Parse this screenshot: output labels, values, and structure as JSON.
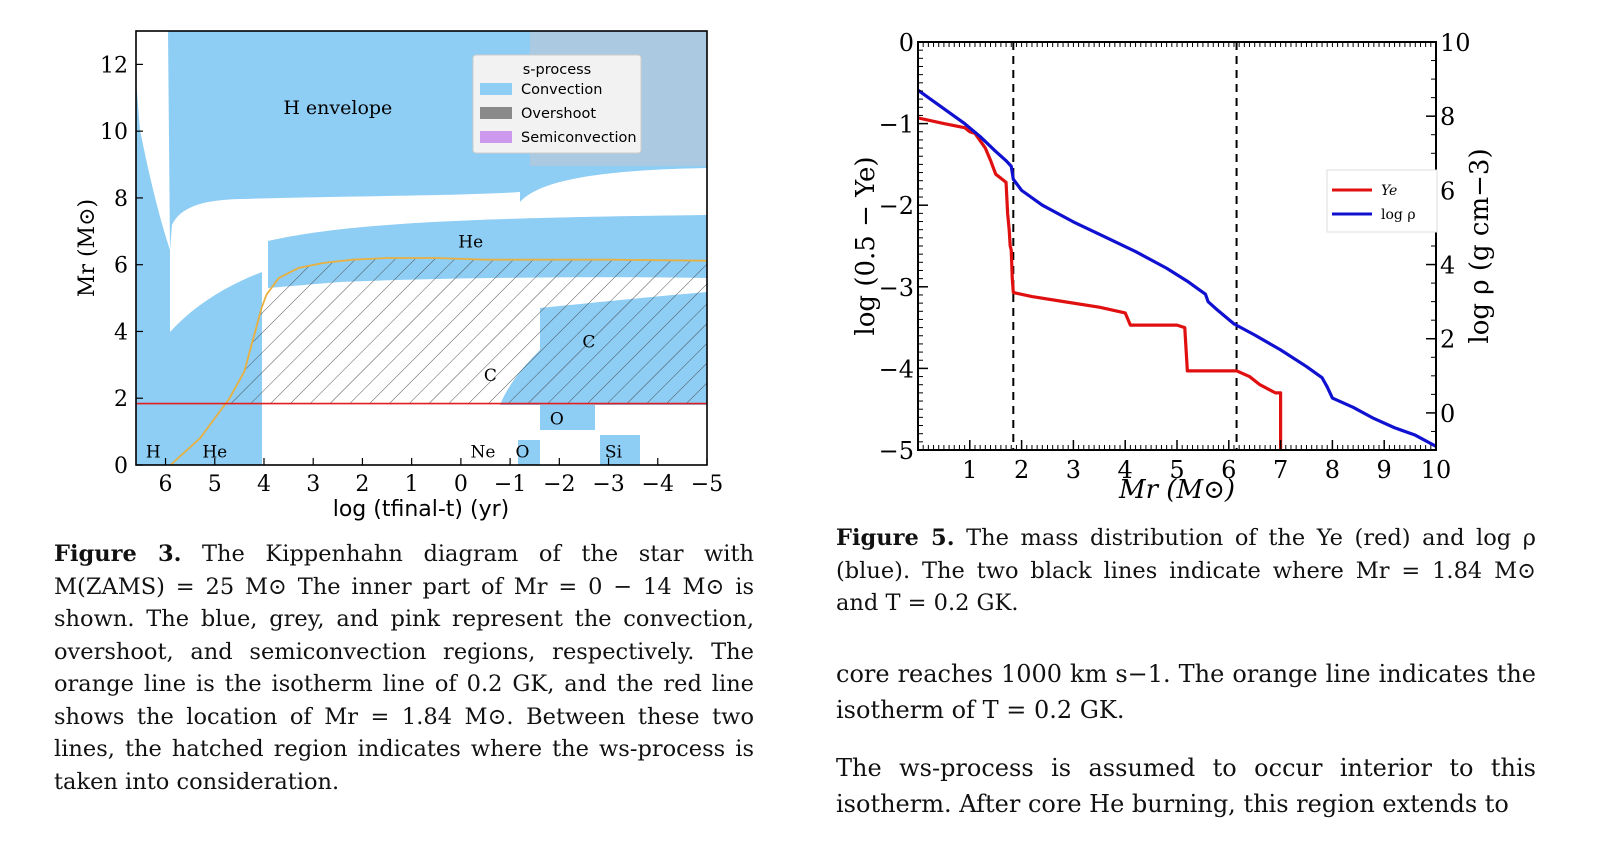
{
  "figure3": {
    "label": "Figure 3.",
    "caption": "The Kippenhahn diagram of the star with M(ZAMS) = 25 M⊙ The inner part of Mr = 0 − 14 M⊙ is shown. The blue, grey, and pink represent the convection, overshoot, and semiconvection regions, respectively. The orange line is the isotherm line of 0.2 GK, and the red line shows the location of Mr = 1.84 M⊙. Between these two lines, the hatched region indicates where the ws-process is taken into consideration."
  },
  "figure5": {
    "label": "Figure 5.",
    "caption": "The mass distribution of the Ye (red) and log ρ (blue). The two black lines indicate where Mr = 1.84 M⊙ and T = 0.2 GK."
  },
  "body": {
    "para1": "core reaches 1000 km s−1. The orange line indicates the isotherm of T = 0.2 GK.",
    "para2": "The ws-process is assumed to occur interior to this isotherm. After core He burning, this region extends to"
  },
  "chart_data": [
    {
      "type": "area",
      "name": "kippenhahn",
      "xlabel": "log (tfinal-t) (yr)",
      "ylabel": "Mr (M⊙)",
      "xlim": [
        6.6,
        -5
      ],
      "ylim": [
        0,
        13
      ],
      "xticks": [
        "6",
        "5",
        "4",
        "3",
        "2",
        "1",
        "0",
        "−1",
        "−2",
        "−3",
        "−4",
        "−5"
      ],
      "xtick_values": [
        6,
        5,
        4,
        3,
        2,
        1,
        0,
        -1,
        -2,
        -3,
        -4,
        -5
      ],
      "yticks": [
        "0",
        "2",
        "4",
        "6",
        "8",
        "10",
        "12"
      ],
      "ytick_values": [
        0,
        2,
        4,
        6,
        8,
        10,
        12
      ],
      "legend": {
        "title": "s-process",
        "placement": "top-right",
        "entries": [
          {
            "label": "Convection",
            "color": "#8ecdf4"
          },
          {
            "label": "Overshoot",
            "color": "#8a8a8a"
          },
          {
            "label": "Semiconvection",
            "color": "#cc99ee"
          }
        ]
      },
      "region_labels": [
        {
          "text": "H envelope",
          "x": 2.5,
          "y": 10.7
        },
        {
          "text": "He",
          "x": -0.2,
          "y": 6.7
        },
        {
          "text": "C",
          "x": -2.6,
          "y": 3.7
        },
        {
          "text": "C",
          "x": -0.6,
          "y": 2.7
        },
        {
          "text": "O",
          "x": -1.95,
          "y": 1.4
        },
        {
          "text": "H",
          "x": 6.25,
          "y": 0.4
        },
        {
          "text": "He",
          "x": 5.0,
          "y": 0.4
        },
        {
          "text": "Ne",
          "x": -0.45,
          "y": 0.4
        },
        {
          "text": "O",
          "x": -1.25,
          "y": 0.4
        },
        {
          "text": "Si",
          "x": -3.1,
          "y": 0.4
        }
      ],
      "red_line_mass": 1.84,
      "isotherm_0.2GK": {
        "x": [
          5.9,
          5.3,
          4.7,
          4.4,
          4.05,
          3.95,
          3.7,
          3.3,
          2.8,
          2.2,
          1.5,
          0.5,
          -0.5,
          -1.5,
          -3.0,
          -5.0
        ],
        "y": [
          0.0,
          0.8,
          2.0,
          2.8,
          4.7,
          5.1,
          5.6,
          5.9,
          6.05,
          6.15,
          6.2,
          6.2,
          6.15,
          6.15,
          6.15,
          6.12
        ]
      }
    },
    {
      "type": "line",
      "name": "ye-rho",
      "xlabel": "Mr (M⊙)",
      "ylabel": "log (0.5 − Ye)",
      "ylabel_right": "log ρ (g cm−3)",
      "xlim": [
        0,
        10
      ],
      "ylim": [
        -5,
        0
      ],
      "ylim_right": [
        -1,
        10
      ],
      "xticks": [
        "1",
        "2",
        "3",
        "4",
        "5",
        "6",
        "7",
        "8",
        "9",
        "10"
      ],
      "yticks": [
        "0",
        "−1",
        "−2",
        "−3",
        "−4",
        "−5"
      ],
      "ytick_values": [
        0,
        -1,
        -2,
        -3,
        -4,
        -5
      ],
      "yticks_right": [
        "10",
        "8",
        "6",
        "4",
        "2",
        "0"
      ],
      "ytick_right_values": [
        10,
        8,
        6,
        4,
        2,
        0
      ],
      "vlines": [
        1.84,
        6.15
      ],
      "legend_placement": "right",
      "series": [
        {
          "name": "Ye",
          "color": "#e01010",
          "axis": "left",
          "x": [
            0.0,
            0.5,
            0.9,
            1.0,
            1.1,
            1.3,
            1.4,
            1.5,
            1.6,
            1.7,
            1.73,
            1.76,
            1.78,
            1.8,
            1.82,
            1.84,
            2.2,
            2.8,
            3.5,
            4.0,
            4.1,
            4.6,
            5.0,
            5.15,
            5.2,
            5.5,
            5.8,
            6.15,
            6.4,
            6.6,
            6.9,
            7.0,
            7.0
          ],
          "y": [
            -0.93,
            -1.0,
            -1.05,
            -1.1,
            -1.12,
            -1.3,
            -1.45,
            -1.62,
            -1.67,
            -1.72,
            -2.1,
            -2.3,
            -2.5,
            -2.55,
            -2.9,
            -3.07,
            -3.12,
            -3.18,
            -3.25,
            -3.32,
            -3.47,
            -3.47,
            -3.47,
            -3.5,
            -4.03,
            -4.03,
            -4.03,
            -4.03,
            -4.1,
            -4.2,
            -4.3,
            -4.3,
            -5.0
          ]
        },
        {
          "name": "log ρ",
          "color": "#1010d0",
          "axis": "right",
          "x": [
            0.0,
            0.3,
            0.6,
            0.9,
            1.2,
            1.5,
            1.7,
            1.8,
            1.84,
            2.0,
            2.4,
            3.0,
            3.6,
            4.2,
            4.8,
            5.2,
            5.4,
            5.55,
            5.6,
            5.8,
            6.1,
            6.5,
            7.0,
            7.5,
            7.8,
            7.9,
            8.0,
            8.4,
            8.8,
            9.2,
            9.6,
            10.0
          ],
          "y": [
            8.7,
            8.4,
            8.1,
            7.8,
            7.45,
            7.05,
            6.8,
            6.65,
            6.3,
            6.0,
            5.6,
            5.15,
            4.75,
            4.35,
            3.9,
            3.55,
            3.35,
            3.2,
            3.0,
            2.75,
            2.4,
            2.1,
            1.7,
            1.25,
            0.95,
            0.7,
            0.4,
            0.15,
            -0.15,
            -0.4,
            -0.6,
            -0.9
          ]
        }
      ]
    }
  ]
}
